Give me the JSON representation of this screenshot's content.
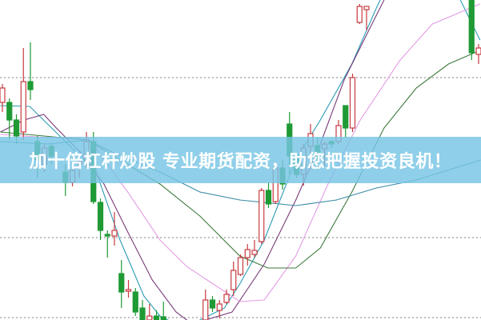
{
  "banner": {
    "text": "加十倍杠杆炒股 专业期货配资，助您把握投资良机！"
  },
  "colors": {
    "up": "#c8393f",
    "down": "#1f9a34",
    "grid": "#9a9a9a",
    "banner": "#78c4e4"
  },
  "chart_data": {
    "type": "candlestick",
    "title": "",
    "grid": true,
    "y_range": [
      0,
      100
    ],
    "gridlines": [
      75.75,
      25.75,
      0.75
    ],
    "candles_ohlc": [
      [
        68,
        73.75,
        65,
        72.5
      ],
      [
        68,
        69.25,
        56.25,
        62.5
      ],
      [
        62.5,
        64.25,
        55,
        57.5
      ],
      [
        58.75,
        85,
        56.25,
        74.5
      ],
      [
        74.5,
        86.75,
        68.75,
        72
      ],
      [
        55.75,
        57.5,
        44.5,
        50
      ],
      [
        48.75,
        55,
        46.25,
        53.75
      ],
      [
        54.25,
        55,
        48.75,
        51.25
      ],
      null,
      [
        46.25,
        48.75,
        38.75,
        43
      ],
      [
        43,
        48.75,
        41.75,
        46.75
      ],
      [
        48.75,
        50,
        44.5,
        49.5
      ],
      [
        50,
        58.75,
        47.5,
        55.75
      ],
      [
        55.75,
        58.75,
        36.25,
        37
      ],
      [
        36.75,
        38,
        25,
        28
      ],
      [
        26.75,
        28,
        19.5,
        26.25
      ],
      [
        26.25,
        33.75,
        23.25,
        28
      ],
      [
        14.5,
        18.75,
        3.75,
        8.75
      ],
      [
        9,
        12.5,
        7,
        9.5
      ],
      [
        8.75,
        10,
        1.25,
        2.5
      ],
      [
        3.75,
        6.25,
        0,
        0
      ],
      [
        0,
        5,
        0,
        1.25
      ],
      [
        1.25,
        3,
        0,
        0
      ],
      [
        1,
        5.75,
        -2,
        -2
      ],
      null,
      null,
      null,
      null,
      null,
      [
        0,
        9.5,
        -1,
        6.25
      ],
      [
        6.25,
        7.5,
        2.5,
        3.75
      ],
      [
        3,
        6.25,
        0.5,
        5
      ],
      [
        5.5,
        9.5,
        5,
        8
      ],
      [
        9.5,
        18.25,
        7.5,
        15.5
      ],
      [
        14.25,
        20.5,
        13.75,
        19.5
      ],
      [
        19.5,
        23.75,
        17,
        22
      ],
      [
        20.5,
        25,
        19.5,
        21.75
      ],
      [
        24.5,
        41.25,
        23.75,
        40.5
      ],
      [
        40.5,
        43,
        35,
        36.25
      ],
      [
        37,
        48.75,
        36.25,
        47.5
      ],
      [
        47.5,
        50,
        40.75,
        42.5
      ],
      [
        61.25,
        65,
        45.5,
        51.25
      ],
      [
        50.5,
        51.75,
        44.5,
        45.5
      ],
      [
        45.5,
        55,
        42,
        53.75
      ],
      [
        54.25,
        61.25,
        47,
        58.25
      ],
      [
        54.5,
        57,
        47,
        52.5
      ],
      [
        53.5,
        55.75,
        48,
        55
      ],
      [
        55.75,
        56.25,
        53.75,
        55
      ],
      [
        55.75,
        62.5,
        55,
        60.75
      ],
      [
        67,
        67,
        57,
        60
      ],
      [
        60,
        77,
        58.75,
        75.75
      ],
      [
        93,
        98.75,
        92.5,
        98
      ],
      [
        97,
        98,
        90.5,
        98
      ],
      null,
      null,
      null,
      null,
      null,
      null,
      null,
      null,
      null,
      null,
      null,
      null,
      null,
      null,
      [
        102,
        102,
        81.25,
        83.5
      ],
      [
        83,
        86.25,
        80,
        85
      ],
      [
        85,
        91.25,
        82.5,
        90
      ],
      [
        91.25,
        92,
        90,
        91.75
      ]
    ],
    "moving_averages": [
      {
        "color": "#2a9cb4",
        "points": [
          [
            -0.3,
            67
          ],
          [
            3.9,
            66.75
          ],
          [
            13.4,
            46.25
          ],
          [
            16.8,
            25
          ],
          [
            20.2,
            7.5
          ],
          [
            22.5,
            1.25
          ],
          [
            25.9,
            -2.5
          ],
          [
            31.7,
            3.75
          ],
          [
            33.9,
            11.25
          ],
          [
            37.4,
            25
          ],
          [
            41.9,
            50
          ],
          [
            45.4,
            62.5
          ],
          [
            49.9,
            80
          ],
          [
            53.4,
            97.5
          ],
          [
            54.5,
            102.5
          ]
        ]
      },
      {
        "color": "#2a9cb4",
        "points": [
          [
            65.4,
            100
          ],
          [
            68.2,
            87.5
          ]
        ]
      },
      {
        "color": "#7a3a7a",
        "points": [
          [
            -0.3,
            58.75
          ],
          [
            3.1,
            62.5
          ],
          [
            5.9,
            64.25
          ],
          [
            7.7,
            60
          ],
          [
            11.1,
            52.5
          ],
          [
            14.5,
            42.5
          ],
          [
            17.9,
            27.5
          ],
          [
            21.4,
            12.5
          ],
          [
            24.8,
            2.5
          ],
          [
            27.1,
            -1.25
          ],
          [
            32.8,
            2.5
          ],
          [
            37.4,
            17.5
          ],
          [
            41.9,
            37.5
          ],
          [
            45.4,
            55
          ],
          [
            48.8,
            75
          ],
          [
            52.2,
            90
          ],
          [
            54.5,
            100
          ]
        ]
      },
      {
        "color": "#e49be4",
        "points": [
          [
            -0.3,
            58
          ],
          [
            6.5,
            57
          ],
          [
            12.2,
            57
          ],
          [
            17.9,
            40
          ],
          [
            22.5,
            25
          ],
          [
            26.3,
            16.75
          ],
          [
            33.9,
            5.75
          ],
          [
            37.4,
            6.25
          ],
          [
            41.9,
            20
          ],
          [
            46.5,
            42.5
          ],
          [
            51.1,
            62.5
          ],
          [
            56.8,
            81.25
          ],
          [
            61.4,
            92.5
          ],
          [
            68.2,
            98.75
          ]
        ]
      },
      {
        "color": "#3d7a3d",
        "points": [
          [
            -0.3,
            58.75
          ],
          [
            12.2,
            56.25
          ],
          [
            16.8,
            50
          ],
          [
            22.5,
            42.5
          ],
          [
            28.2,
            32.5
          ],
          [
            33.9,
            20
          ],
          [
            37.9,
            16.25
          ],
          [
            41.9,
            16.25
          ],
          [
            45.4,
            22.5
          ],
          [
            49.9,
            40
          ],
          [
            54.5,
            60
          ],
          [
            59.1,
            72.5
          ],
          [
            63.7,
            80
          ],
          [
            68.2,
            84.25
          ]
        ]
      },
      {
        "color": "#3a8aa6",
        "points": [
          [
            -0.3,
            55.75
          ],
          [
            6.5,
            55
          ],
          [
            12.2,
            56.25
          ],
          [
            16.8,
            51.25
          ],
          [
            22.5,
            46.25
          ],
          [
            28.2,
            40
          ],
          [
            33.9,
            37.5
          ],
          [
            41.9,
            35.75
          ],
          [
            47.7,
            37.5
          ],
          [
            53.4,
            41.25
          ],
          [
            59.1,
            43.75
          ],
          [
            68.3,
            50
          ]
        ]
      }
    ]
  }
}
